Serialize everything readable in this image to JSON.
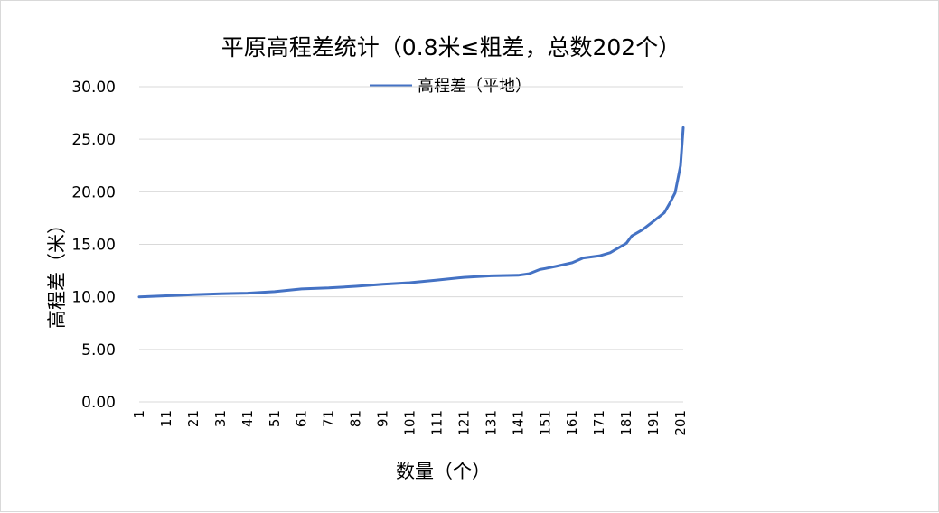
{
  "chart_data": {
    "type": "line",
    "title": "平原高程差统计（0.8米≤粗差，总数202个）",
    "xlabel": "数量（个）",
    "ylabel": "高程差（米）",
    "legend": {
      "position": "top",
      "entries": [
        "高程差（平地）"
      ]
    },
    "grid": {
      "horizontal": true,
      "vertical": false
    },
    "ylim": [
      0,
      30
    ],
    "yticks": [
      "0.00",
      "5.00",
      "10.00",
      "15.00",
      "20.00",
      "25.00",
      "30.00"
    ],
    "xlim": [
      1,
      202
    ],
    "xticks": [
      "1",
      "11",
      "21",
      "31",
      "41",
      "51",
      "61",
      "71",
      "81",
      "91",
      "101",
      "111",
      "121",
      "131",
      "141",
      "151",
      "161",
      "171",
      "181",
      "191",
      "201"
    ],
    "series": [
      {
        "name": "高程差（平地）",
        "color": "#4472c4",
        "x": [
          1,
          11,
          21,
          31,
          41,
          51,
          61,
          71,
          81,
          91,
          101,
          111,
          121,
          131,
          141,
          145,
          149,
          151,
          155,
          161,
          165,
          171,
          175,
          181,
          183,
          187,
          191,
          195,
          197,
          199,
          201,
          202
        ],
        "values": [
          10.0,
          10.1,
          10.2,
          10.3,
          10.35,
          10.5,
          10.75,
          10.85,
          11.0,
          11.2,
          11.35,
          11.6,
          11.85,
          12.0,
          12.05,
          12.2,
          12.6,
          12.7,
          12.9,
          13.25,
          13.7,
          13.9,
          14.2,
          15.1,
          15.8,
          16.4,
          17.2,
          18.0,
          18.9,
          19.9,
          22.5,
          26.1
        ]
      }
    ]
  }
}
